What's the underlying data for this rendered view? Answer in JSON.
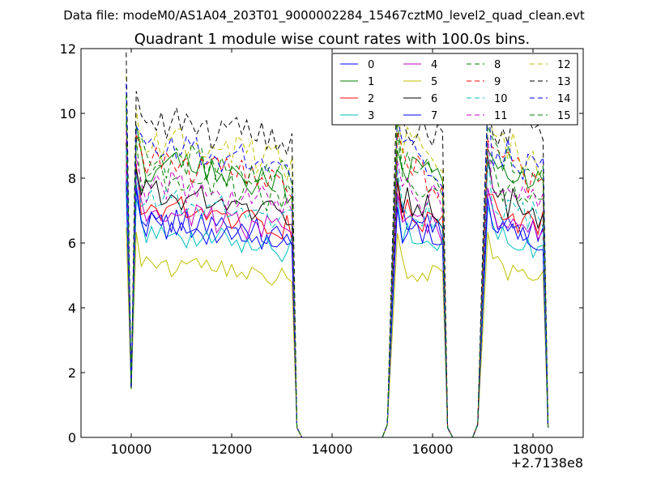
{
  "suptitle": "Data file: modeM0/AS1A04_203T01_9000002284_15467cztM0_level2_quad_clean.evt",
  "chart_data": {
    "type": "line",
    "title": "Quadrant 1 module wise count rates with 100.0s bins.",
    "xlabel": "",
    "ylabel": "",
    "x_offset_label": "+2.7138e8",
    "xlim": [
      9000,
      19000
    ],
    "ylim": [
      0,
      12
    ],
    "x_ticks": [
      10000,
      12000,
      14000,
      16000,
      18000
    ],
    "y_ticks": [
      0,
      2,
      4,
      6,
      8,
      10,
      12
    ],
    "x_tick_labels": [
      "10000",
      "12000",
      "14000",
      "16000",
      "18000"
    ],
    "y_tick_labels": [
      "0",
      "2",
      "4",
      "6",
      "8",
      "10",
      "12"
    ],
    "grid": false,
    "legend_position": "top-right",
    "legend_columns": 4,
    "x_segments": [
      {
        "start": 9900,
        "end": 13300
      },
      {
        "start": 15100,
        "end": 16300
      },
      {
        "start": 16900,
        "end": 18300
      }
    ],
    "bin_width": 100,
    "series": [
      {
        "name": "0",
        "color": "#0000ff",
        "dash": "solid",
        "level": 6.9
      },
      {
        "name": "1",
        "color": "#008000",
        "dash": "solid",
        "level": 8.5
      },
      {
        "name": "2",
        "color": "#ff0000",
        "dash": "solid",
        "level": 7.2
      },
      {
        "name": "3",
        "color": "#00bfbf",
        "dash": "solid",
        "level": 6.4
      },
      {
        "name": "4",
        "color": "#bf00bf",
        "dash": "solid",
        "level": 7.0
      },
      {
        "name": "5",
        "color": "#bfbf00",
        "dash": "solid",
        "level": 5.4
      },
      {
        "name": "6",
        "color": "#000000",
        "dash": "solid",
        "level": 7.6
      },
      {
        "name": "7",
        "color": "#0000ff",
        "dash": "solid",
        "level": 6.6
      },
      {
        "name": "8",
        "color": "#008000",
        "dash": "dashed",
        "level": 8.1
      },
      {
        "name": "9",
        "color": "#ff0000",
        "dash": "dashed",
        "level": 8.6
      },
      {
        "name": "10",
        "color": "#00bfbf",
        "dash": "dashed",
        "level": 7.4
      },
      {
        "name": "11",
        "color": "#bf00bf",
        "dash": "dashed",
        "level": 7.9
      },
      {
        "name": "12",
        "color": "#bfbf00",
        "dash": "dashed",
        "level": 9.3
      },
      {
        "name": "13",
        "color": "#000000",
        "dash": "dashed",
        "level": 9.9
      },
      {
        "name": "14",
        "color": "#0000ff",
        "dash": "dashed",
        "level": 9.1
      },
      {
        "name": "15",
        "color": "#008000",
        "dash": "dashed",
        "level": 8.8
      }
    ]
  }
}
